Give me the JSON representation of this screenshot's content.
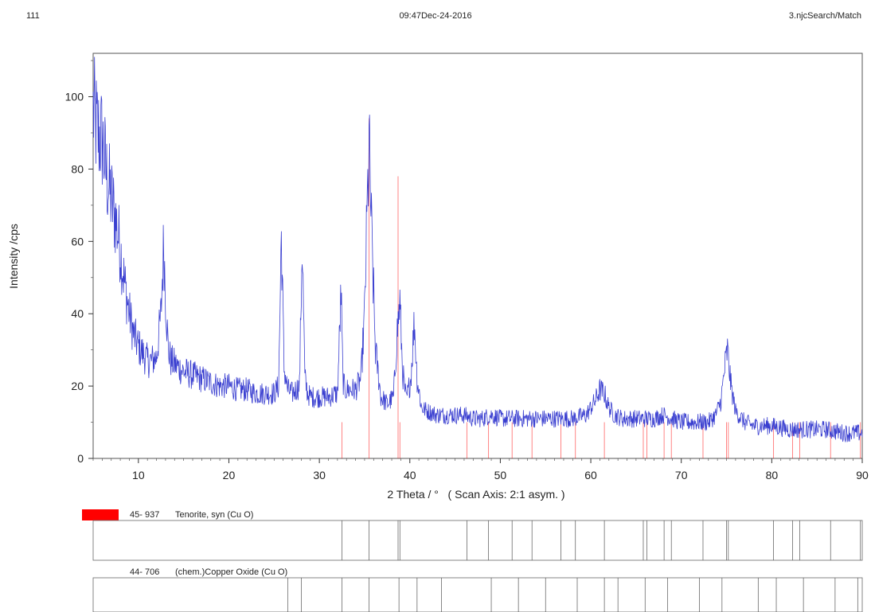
{
  "header": {
    "left": "111",
    "center": "09:47Dec-24-2016",
    "right": "3.njcSearch/Match"
  },
  "chart_data": {
    "type": "line",
    "xlabel": "2 Theta / °   ( Scan Axis: 2:1 asym. )",
    "ylabel": "Intensity /cps",
    "xlim": [
      5,
      90
    ],
    "ylim": [
      0,
      112
    ],
    "xticks": [
      10,
      20,
      30,
      40,
      50,
      60,
      70,
      80,
      90
    ],
    "yticks": [
      0,
      20,
      40,
      60,
      80,
      100
    ],
    "grid": false,
    "series_color": "#3a3fd0",
    "series": [
      {
        "x": [
          5.0,
          5.5,
          6.0,
          6.5,
          7.0,
          7.5,
          8.0,
          8.5,
          9.0,
          9.5,
          10.0,
          10.5,
          11.0,
          11.5,
          12.0,
          12.5,
          12.8,
          13.0,
          13.3,
          13.6,
          14.0,
          15.0,
          16.0,
          17.0,
          18.0,
          19.0,
          20.0,
          21.0,
          22.0,
          23.0,
          24.0,
          25.0,
          25.5,
          25.8,
          26.1,
          26.5,
          27.0,
          27.8,
          28.1,
          28.4,
          28.7,
          29.0,
          30.0,
          31.0,
          32.0,
          32.4,
          32.6,
          32.8,
          33.2,
          34.0,
          34.6,
          35.0,
          35.3,
          35.5,
          35.8,
          36.2,
          36.8,
          37.5,
          38.2,
          38.6,
          38.9,
          39.2,
          39.6,
          40.1,
          40.5,
          40.8,
          41.3,
          42.0,
          43.0,
          44.0,
          45.0,
          46.0,
          47.0,
          48.0,
          49.0,
          50.0,
          52.0,
          54.0,
          56.0,
          58.0,
          59.5,
          60.5,
          61.0,
          61.5,
          62.0,
          62.6,
          63.5,
          65.0,
          66.0,
          67.0,
          68.0,
          69.0,
          70.0,
          71.0,
          72.0,
          73.0,
          73.8,
          74.4,
          74.8,
          75.1,
          75.5,
          76.0,
          77.0,
          78.0,
          80.0,
          82.0,
          84.0,
          86.0,
          88.0,
          90.0
        ],
        "y": [
          96,
          90,
          88,
          78,
          72,
          66,
          58,
          48,
          40,
          34,
          31,
          29,
          27,
          27,
          28,
          40,
          60,
          45,
          30,
          27,
          26,
          24,
          23,
          22,
          21,
          20,
          20,
          19,
          19,
          18,
          18,
          18,
          20,
          62,
          25,
          19,
          18,
          20,
          60,
          22,
          18,
          17,
          17,
          17,
          18,
          46,
          22,
          19,
          19,
          19,
          22,
          40,
          70,
          86,
          60,
          30,
          17,
          15,
          17,
          35,
          43,
          24,
          16,
          22,
          38,
          22,
          14,
          13,
          12,
          12,
          12,
          12,
          11,
          11,
          12,
          11,
          11,
          11,
          11,
          11,
          12,
          16,
          19,
          18,
          14,
          12,
          11,
          11,
          11,
          11,
          12,
          11,
          10,
          10,
          10,
          10,
          12,
          16,
          25,
          30,
          20,
          13,
          10,
          9,
          9,
          8,
          8,
          8,
          7,
          7
        ]
      }
    ],
    "reference_patterns": [
      {
        "id": "45- 937",
        "name": "Tenorite, syn  (Cu O)",
        "color": "#ff0000",
        "lines": [
          32.5,
          35.5,
          38.7,
          38.9,
          46.3,
          48.7,
          51.3,
          53.5,
          56.7,
          58.3,
          61.5,
          65.8,
          66.2,
          68.1,
          68.9,
          72.4,
          75.0,
          75.2,
          80.2,
          82.3,
          83.1,
          86.5,
          89.8
        ]
      },
      {
        "id": "44- 706",
        "name": "(chem.)Copper Oxide  (Cu O)",
        "color": "#1a4fd8",
        "lines": [
          26.5,
          28.0,
          32.5,
          35.5,
          38.8,
          40.8,
          43.5,
          49.0,
          52.0,
          55.0,
          58.5,
          61.5,
          63.0,
          66.0,
          68.5,
          72.0,
          74.5,
          78.5,
          80.5,
          83.5,
          87.0,
          89.5
        ]
      }
    ]
  }
}
